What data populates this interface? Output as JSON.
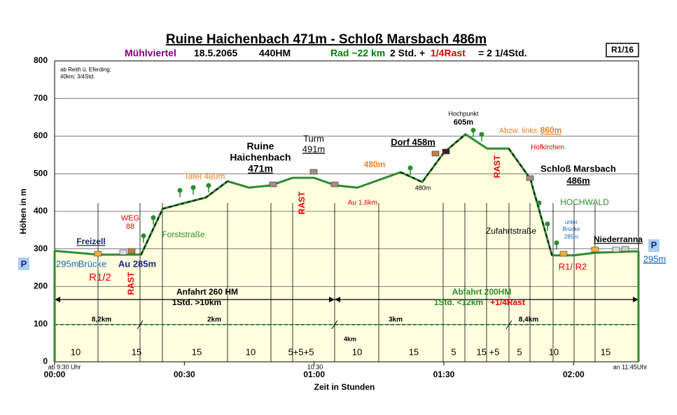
{
  "chart_data": {
    "type": "area",
    "title": "Ruine Haichenbach 471m - Schloß Marsbach 486m",
    "subtitle": [
      "Mühlviertel",
      "18.5.2065",
      "440HM",
      "Rad ~22 km",
      "2 Std. +",
      "1/4Rast",
      "= 2 1/4Std."
    ],
    "code": "R1/16",
    "x_label": "Zeit in Stunden",
    "y_label": "Höhen in m",
    "x": [
      0,
      10,
      20,
      25,
      35,
      40,
      45,
      50,
      55,
      60,
      65,
      70,
      80,
      85,
      90,
      95,
      100,
      105,
      110,
      115,
      120,
      125,
      135
    ],
    "values": [
      295,
      285,
      285,
      407,
      437,
      480,
      463,
      469,
      489,
      489,
      469,
      463,
      504,
      478,
      556,
      605,
      567,
      567,
      486,
      283,
      283,
      290,
      294
    ],
    "color": "#2e8b2e",
    "fill": "#ffffe0",
    "xlim": [
      0,
      135
    ],
    "ylim": [
      0,
      800
    ],
    "yticks": [
      0,
      100,
      200,
      300,
      400,
      500,
      600,
      700,
      800
    ],
    "xticks": [
      {
        "value": 0,
        "label": "00:00"
      },
      {
        "value": 30,
        "label": "00:30"
      },
      {
        "value": 60,
        "label": "01:00"
      },
      {
        "value": 90,
        "label": "01:30"
      },
      {
        "value": 120,
        "label": "02:00"
      }
    ],
    "grid": true,
    "annotations": [
      "ab Reith ü. Eferding:",
      "40km; 3/4Std.",
      "Freizell",
      "295m",
      "Brücke",
      "P",
      "R1/2",
      "WEG",
      "88",
      "Au 285m",
      "RAST",
      "Forststraße",
      "Tafel 480m",
      "Ruine",
      "Haichenbach",
      "471m",
      "RAST",
      "Turm",
      "491m",
      "480m",
      "Au 1,6km",
      "Dorf 458m",
      "480m",
      "Hochpunkt",
      "605m",
      "Abzw. links",
      "860m",
      "Hofkirchen",
      "RAST",
      "Schloß Marsbach",
      "486m",
      "HOCHWALD",
      "Zufahrtstraße",
      "unter",
      "Brücke",
      "285m",
      "Niederranna",
      "P",
      "295m",
      "R1/ R2",
      "Anfahrt 260 HM",
      "1Std. >10km",
      "Abfahrt 200HM",
      "1Std. <12km",
      "+1/4Rast",
      "8,2km",
      "2km",
      "4km",
      "3km",
      "8,4km",
      "ab 9:30 Uhr",
      "10:30",
      "an 11:45Uhr"
    ],
    "segments": [
      "10",
      "15",
      "15",
      "10",
      "5+5+5",
      "10",
      "15",
      "5",
      "15 +5",
      "5",
      "10",
      "15"
    ]
  }
}
